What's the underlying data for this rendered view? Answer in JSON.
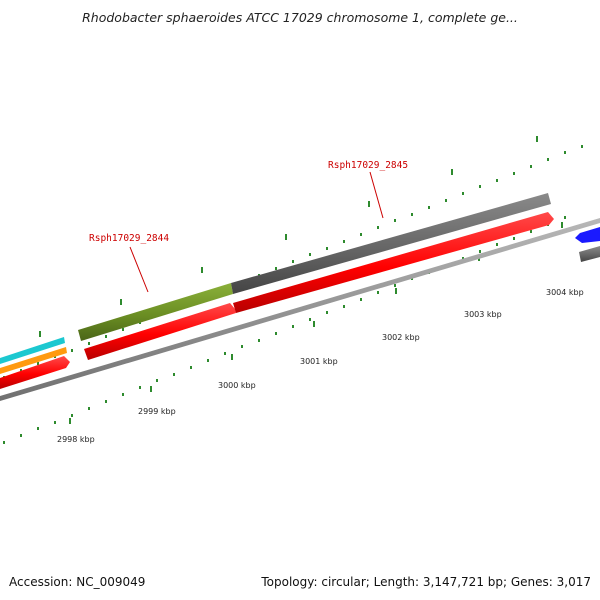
{
  "title": "Rhodobacter sphaeroides ATCC 17029 chromosome 1, complete ge...",
  "footer": {
    "accession": "Accession: NC_009049",
    "summary": "Topology: circular; Length: 3,147,721 bp; Genes: 3,017"
  },
  "gene_labels": [
    {
      "text": "Rsph17029_2844"
    },
    {
      "text": "Rsph17029_2845"
    }
  ],
  "scale_labels": [
    {
      "text": "2998 kbp"
    },
    {
      "text": "2999 kbp"
    },
    {
      "text": "3000 kbp"
    },
    {
      "text": "3001 kbp"
    },
    {
      "text": "3002 kbp"
    },
    {
      "text": "3003 kbp"
    },
    {
      "text": "3004 kbp"
    }
  ],
  "colors": {
    "forward_strand_gene": "#ff0000",
    "gene_olive": "#6b8e23",
    "gene_gray": "#666666",
    "gene_cyan": "#00cccc",
    "gene_orange": "#ff9900",
    "gene_blue": "#0000ff",
    "backbone": "#888888",
    "tick": "#2e8b2e",
    "label": "#cc0000"
  }
}
